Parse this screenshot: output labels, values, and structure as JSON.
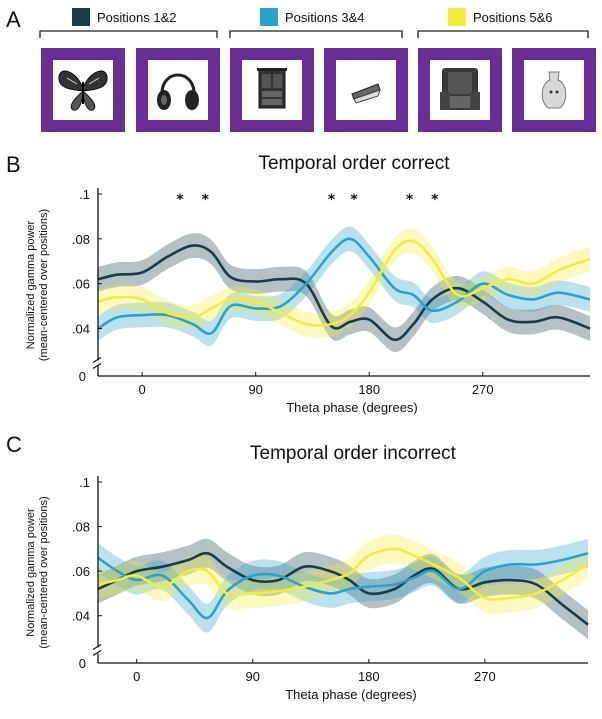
{
  "panels": {
    "a": "A",
    "b": "B",
    "c": "C"
  },
  "legend": [
    {
      "label": "Positions 1&2",
      "color": "#183d4a"
    },
    {
      "label": "Positions 3&4",
      "color": "#2aa3cc"
    },
    {
      "label": "Positions 5&6",
      "color": "#f4ec3c"
    }
  ],
  "stimuli": {
    "frame_color": "#6a2f94",
    "items": [
      {
        "icon": "butterfly-icon"
      },
      {
        "icon": "headphones-icon"
      },
      {
        "icon": "cabinet-icon"
      },
      {
        "icon": "stapler-icon"
      },
      {
        "icon": "armchair-icon"
      },
      {
        "icon": "vase-icon"
      }
    ]
  },
  "chart_data": [
    {
      "type": "line",
      "title": "Temporal order correct",
      "xlabel": "Theta phase (degrees)",
      "ylabel_lines": [
        "Normalized gamma power",
        "(mean-centered over positions)"
      ],
      "xlim": [
        -35,
        355
      ],
      "ylim": [
        0.03,
        0.1
      ],
      "xticks": [
        {
          "v": 0,
          "label": "0"
        },
        {
          "v": 90,
          "label": "90"
        },
        {
          "v": 180,
          "label": "180"
        },
        {
          "v": 270,
          "label": "270"
        }
      ],
      "yticks": [
        {
          "v": 0.04,
          "label": ".04"
        },
        {
          "v": 0.06,
          "label": ".06"
        },
        {
          "v": 0.08,
          "label": ".08"
        },
        {
          "v": 0.1,
          "label": ".1"
        }
      ],
      "ybreak_label": "0",
      "significance_x": [
        30,
        50,
        150,
        168,
        212,
        232
      ],
      "significance_symbol": "*",
      "x": [
        -35,
        -20,
        0,
        20,
        40,
        55,
        70,
        90,
        110,
        130,
        150,
        165,
        180,
        200,
        215,
        230,
        250,
        270,
        290,
        310,
        330,
        355
      ],
      "series": [
        {
          "color": "#183d4a",
          "band_width": 0.0055,
          "values": [
            0.062,
            0.064,
            0.065,
            0.072,
            0.077,
            0.074,
            0.063,
            0.061,
            0.062,
            0.06,
            0.041,
            0.043,
            0.044,
            0.035,
            0.042,
            0.053,
            0.058,
            0.052,
            0.044,
            0.043,
            0.045,
            0.04
          ]
        },
        {
          "color": "#2aa3cc",
          "band_width": 0.0055,
          "values": [
            0.04,
            0.045,
            0.046,
            0.046,
            0.042,
            0.038,
            0.05,
            0.049,
            0.05,
            0.06,
            0.074,
            0.08,
            0.072,
            0.058,
            0.055,
            0.048,
            0.052,
            0.06,
            0.055,
            0.053,
            0.056,
            0.053
          ]
        },
        {
          "color": "#f4ec3c",
          "band_width": 0.0055,
          "values": [
            0.052,
            0.054,
            0.053,
            0.047,
            0.045,
            0.049,
            0.053,
            0.052,
            0.047,
            0.042,
            0.042,
            0.046,
            0.056,
            0.075,
            0.079,
            0.071,
            0.055,
            0.058,
            0.062,
            0.06,
            0.066,
            0.071
          ]
        }
      ]
    },
    {
      "type": "line",
      "title": "Temporal order incorrect",
      "xlabel": "Theta phase (degrees)",
      "ylabel_lines": [
        "Normalized gamma power",
        "(mean-centered over positions)"
      ],
      "xlim": [
        -30,
        350
      ],
      "ylim": [
        0.03,
        0.1
      ],
      "xticks": [
        {
          "v": 0,
          "label": "0"
        },
        {
          "v": 90,
          "label": "90"
        },
        {
          "v": 180,
          "label": "180"
        },
        {
          "v": 270,
          "label": "270"
        }
      ],
      "yticks": [
        {
          "v": 0.04,
          "label": ".04"
        },
        {
          "v": 0.06,
          "label": ".06"
        },
        {
          "v": 0.08,
          "label": ".08"
        },
        {
          "v": 0.1,
          "label": ".1"
        }
      ],
      "ybreak_label": "0",
      "significance_x": [],
      "significance_symbol": "*",
      "x": [
        -30,
        -15,
        0,
        20,
        40,
        55,
        70,
        90,
        110,
        130,
        150,
        165,
        180,
        200,
        215,
        230,
        250,
        270,
        290,
        310,
        330,
        350
      ],
      "series": [
        {
          "color": "#183d4a",
          "band_width": 0.0065,
          "values": [
            0.052,
            0.056,
            0.06,
            0.062,
            0.065,
            0.068,
            0.062,
            0.056,
            0.056,
            0.062,
            0.06,
            0.056,
            0.05,
            0.052,
            0.058,
            0.061,
            0.052,
            0.055,
            0.056,
            0.054,
            0.045,
            0.036
          ]
        },
        {
          "color": "#2aa3cc",
          "band_width": 0.0065,
          "values": [
            0.066,
            0.06,
            0.056,
            0.058,
            0.047,
            0.039,
            0.051,
            0.058,
            0.058,
            0.053,
            0.05,
            0.052,
            0.053,
            0.054,
            0.057,
            0.06,
            0.052,
            0.06,
            0.063,
            0.063,
            0.065,
            0.068
          ]
        },
        {
          "color": "#f4ec3c",
          "band_width": 0.0065,
          "values": [
            0.054,
            0.056,
            0.058,
            0.053,
            0.06,
            0.06,
            0.05,
            0.05,
            0.051,
            0.053,
            0.056,
            0.059,
            0.067,
            0.07,
            0.067,
            0.063,
            0.057,
            0.048,
            0.048,
            0.05,
            0.056,
            0.063
          ]
        }
      ]
    }
  ]
}
